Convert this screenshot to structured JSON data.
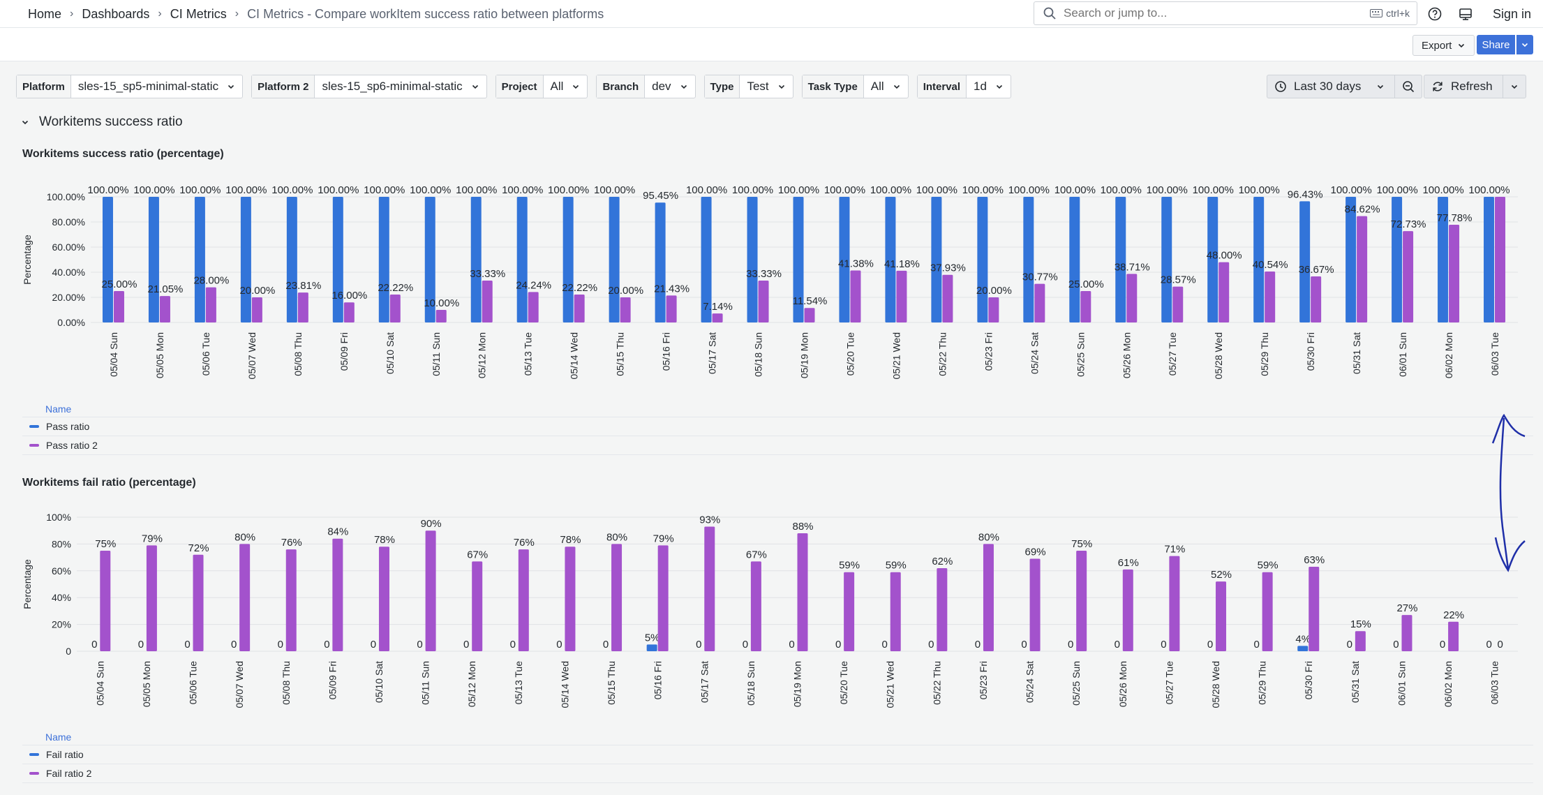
{
  "breadcrumb": [
    "Home",
    "Dashboards",
    "CI Metrics",
    "CI Metrics - Compare workItem success ratio between platforms"
  ],
  "search": {
    "placeholder": "Search or jump to...",
    "shortcut": "ctrl+k"
  },
  "topbar": {
    "signin": "Sign in"
  },
  "toolbar": {
    "export_label": "Export",
    "share_label": "Share"
  },
  "variables": [
    {
      "label": "Platform",
      "value": "sles-15_sp5-minimal-static"
    },
    {
      "label": "Platform 2",
      "value": "sles-15_sp6-minimal-static"
    },
    {
      "label": "Project",
      "value": "All"
    },
    {
      "label": "Branch",
      "value": "dev"
    },
    {
      "label": "Type",
      "value": "Test"
    },
    {
      "label": "Task Type",
      "value": "All"
    },
    {
      "label": "Interval",
      "value": "1d"
    }
  ],
  "timepicker": {
    "label": "Last 30 days"
  },
  "refresh": {
    "label": "Refresh"
  },
  "row": {
    "title": "Workitems success ratio"
  },
  "colors": {
    "series1": "#3274d9",
    "series2": "#a352cc"
  },
  "panels": [
    {
      "title": "Workitems success ratio (percentage)",
      "legend_header": "Name",
      "legend": [
        "Pass ratio",
        "Pass ratio 2"
      ]
    },
    {
      "title": "Workitems fail ratio (percentage)",
      "legend_header": "Name",
      "legend": [
        "Fail ratio",
        "Fail ratio 2"
      ]
    }
  ],
  "chart_data": [
    {
      "type": "bar",
      "title": "Workitems success ratio (percentage)",
      "ylabel": "Percentage",
      "ylim": [
        0,
        100
      ],
      "yticks": [
        "0.00%",
        "20.00%",
        "40.00%",
        "60.00%",
        "80.00%",
        "100.00%"
      ],
      "grid": true,
      "legend_position": "bottom",
      "categories": [
        "05/04 Sun",
        "05/05 Mon",
        "05/06 Tue",
        "05/07 Wed",
        "05/08 Thu",
        "05/09 Fri",
        "05/10 Sat",
        "05/11 Sun",
        "05/12 Mon",
        "05/13 Tue",
        "05/14 Wed",
        "05/15 Thu",
        "05/16 Fri",
        "05/17 Sat",
        "05/18 Sun",
        "05/19 Mon",
        "05/20 Tue",
        "05/21 Wed",
        "05/22 Thu",
        "05/23 Fri",
        "05/24 Sat",
        "05/25 Sun",
        "05/26 Mon",
        "05/27 Tue",
        "05/28 Wed",
        "05/29 Thu",
        "05/30 Fri",
        "05/31 Sat",
        "06/01 Sun",
        "06/02 Mon",
        "06/03 Tue"
      ],
      "series": [
        {
          "name": "Pass ratio",
          "values": [
            100,
            100,
            100,
            100,
            100,
            100,
            100,
            100,
            100,
            100,
            100,
            100,
            95.45,
            100,
            100,
            100,
            100,
            100,
            100,
            100,
            100,
            100,
            100,
            100,
            100,
            100,
            96.43,
            100,
            100,
            100,
            100
          ],
          "labels": [
            "100.00%",
            "100.00%",
            "100.00%",
            "100.00%",
            "100.00%",
            "100.00%",
            "100.00%",
            "100.00%",
            "100.00%",
            "100.00%",
            "100.00%",
            "100.00%",
            "95.45%",
            "100.00%",
            "100.00%",
            "100.00%",
            "100.00%",
            "100.00%",
            "100.00%",
            "100.00%",
            "100.00%",
            "100.00%",
            "100.00%",
            "100.00%",
            "100.00%",
            "100.00%",
            "96.43%",
            "100.00%",
            "100.00%",
            "100.00%",
            "100.00%"
          ]
        },
        {
          "name": "Pass ratio 2",
          "values": [
            25,
            21.05,
            28,
            20,
            23.81,
            16,
            22.22,
            10,
            33.33,
            24.24,
            22.22,
            20,
            21.43,
            7.14,
            33.33,
            11.54,
            41.38,
            41.18,
            37.93,
            20,
            30.77,
            25,
            38.71,
            28.57,
            48,
            40.54,
            36.67,
            84.62,
            72.73,
            77.78,
            100
          ],
          "labels": [
            "25.00%",
            "21.05%",
            "28.00%",
            "20.00%",
            "23.81%",
            "16.00%",
            "22.22%",
            "10.00%",
            "33.33%",
            "24.24%",
            "22.22%",
            "20.00%",
            "21.43%",
            "7.14%",
            "33.33%",
            "11.54%",
            "41.38%",
            "41.18%",
            "37.93%",
            "20.00%",
            "30.77%",
            "25.00%",
            "38.71%",
            "28.57%",
            "48.00%",
            "40.54%",
            "36.67%",
            "84.62%",
            "72.73%",
            "77.78%",
            ""
          ]
        }
      ]
    },
    {
      "type": "bar",
      "title": "Workitems fail ratio (percentage)",
      "ylabel": "Percentage",
      "ylim": [
        0,
        100
      ],
      "yticks": [
        "0",
        "20%",
        "40%",
        "60%",
        "80%",
        "100%"
      ],
      "grid": true,
      "legend_position": "bottom",
      "categories": [
        "05/04 Sun",
        "05/05 Mon",
        "05/06 Tue",
        "05/07 Wed",
        "05/08 Thu",
        "05/09 Fri",
        "05/10 Sat",
        "05/11 Sun",
        "05/12 Mon",
        "05/13 Tue",
        "05/14 Wed",
        "05/15 Thu",
        "05/16 Fri",
        "05/17 Sat",
        "05/18 Sun",
        "05/19 Mon",
        "05/20 Tue",
        "05/21 Wed",
        "05/22 Thu",
        "05/23 Fri",
        "05/24 Sat",
        "05/25 Sun",
        "05/26 Mon",
        "05/27 Tue",
        "05/28 Wed",
        "05/29 Thu",
        "05/30 Fri",
        "05/31 Sat",
        "06/01 Sun",
        "06/02 Mon",
        "06/03 Tue"
      ],
      "series": [
        {
          "name": "Fail ratio",
          "values": [
            0,
            0,
            0,
            0,
            0,
            0,
            0,
            0,
            0,
            0,
            0,
            0,
            5,
            0,
            0,
            0,
            0,
            0,
            0,
            0,
            0,
            0,
            0,
            0,
            0,
            0,
            4,
            0,
            0,
            0,
            0
          ],
          "labels": [
            "0",
            "0",
            "0",
            "0",
            "0",
            "0",
            "0",
            "0",
            "0",
            "0",
            "0",
            "0",
            "5%",
            "0",
            "0",
            "0",
            "0",
            "0",
            "0",
            "0",
            "0",
            "0",
            "0",
            "0",
            "0",
            "0",
            "4%",
            "0",
            "0",
            "0",
            "0"
          ]
        },
        {
          "name": "Fail ratio 2",
          "values": [
            75,
            79,
            72,
            80,
            76,
            84,
            78,
            90,
            67,
            76,
            78,
            80,
            79,
            93,
            67,
            88,
            59,
            59,
            62,
            80,
            69,
            75,
            61,
            71,
            52,
            59,
            63,
            15,
            27,
            22,
            0
          ],
          "labels": [
            "75%",
            "79%",
            "72%",
            "80%",
            "76%",
            "84%",
            "78%",
            "90%",
            "67%",
            "76%",
            "78%",
            "80%",
            "79%",
            "93%",
            "67%",
            "88%",
            "59%",
            "59%",
            "62%",
            "80%",
            "69%",
            "75%",
            "61%",
            "71%",
            "52%",
            "59%",
            "63%",
            "15%",
            "27%",
            "22%",
            "0"
          ]
        }
      ]
    }
  ]
}
